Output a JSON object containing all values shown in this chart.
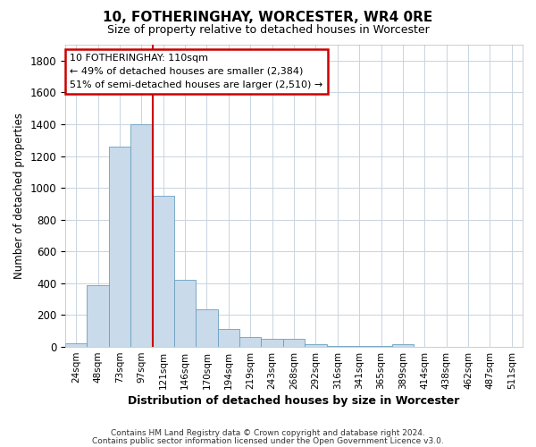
{
  "title": "10, FOTHERINGHAY, WORCESTER, WR4 0RE",
  "subtitle": "Size of property relative to detached houses in Worcester",
  "xlabel": "Distribution of detached houses by size in Worcester",
  "ylabel": "Number of detached properties",
  "bar_color": "#c9daea",
  "bar_edge_color": "#6a9fc0",
  "categories": [
    "24sqm",
    "48sqm",
    "73sqm",
    "97sqm",
    "121sqm",
    "146sqm",
    "170sqm",
    "194sqm",
    "219sqm",
    "243sqm",
    "268sqm",
    "292sqm",
    "316sqm",
    "341sqm",
    "365sqm",
    "389sqm",
    "414sqm",
    "438sqm",
    "462sqm",
    "487sqm",
    "511sqm"
  ],
  "values": [
    25,
    390,
    1260,
    1400,
    950,
    420,
    235,
    110,
    65,
    50,
    50,
    15,
    5,
    5,
    5,
    15,
    2,
    1,
    1,
    1,
    1
  ],
  "ylim": [
    0,
    1900
  ],
  "yticks": [
    0,
    200,
    400,
    600,
    800,
    1000,
    1200,
    1400,
    1600,
    1800
  ],
  "redline_index": 4,
  "annotation_line1": "10 FOTHERINGHAY: 110sqm",
  "annotation_line2": "← 49% of detached houses are smaller (2,384)",
  "annotation_line3": "51% of semi-detached houses are larger (2,510) →",
  "annotation_box_color": "#ffffff",
  "annotation_border_color": "#cc0000",
  "footer1": "Contains HM Land Registry data © Crown copyright and database right 2024.",
  "footer2": "Contains public sector information licensed under the Open Government Licence v3.0.",
  "background_color": "#ffffff",
  "grid_color": "#c8d4e0"
}
